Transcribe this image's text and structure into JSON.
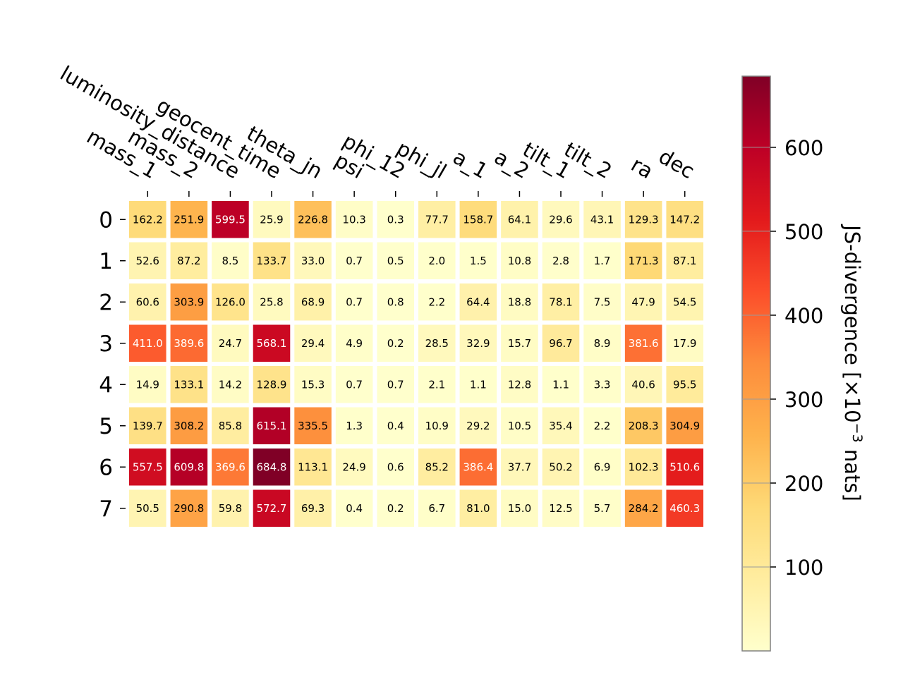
{
  "chart_data": {
    "type": "heatmap",
    "title": "",
    "xlabel": "",
    "ylabel": "",
    "x_categories": [
      "mass_1",
      "mass_2",
      "luminosity_distance",
      "geocent_time",
      "theta_jn",
      "psi",
      "phi_12",
      "phi_jl",
      "a_1",
      "a_2",
      "tilt_1",
      "tilt_2",
      "ra",
      "dec"
    ],
    "y_categories": [
      "0",
      "1",
      "2",
      "3",
      "4",
      "5",
      "6",
      "7"
    ],
    "values": [
      [
        162.2,
        251.9,
        599.5,
        25.9,
        226.8,
        10.3,
        0.3,
        77.7,
        158.7,
        64.1,
        29.6,
        43.1,
        129.3,
        147.2
      ],
      [
        52.6,
        87.2,
        8.5,
        133.7,
        33.0,
        0.7,
        0.5,
        2.0,
        1.5,
        10.8,
        2.8,
        1.7,
        171.3,
        87.1
      ],
      [
        60.6,
        303.9,
        126.0,
        25.8,
        68.9,
        0.7,
        0.8,
        2.2,
        64.4,
        18.8,
        78.1,
        7.5,
        47.9,
        54.5
      ],
      [
        411.0,
        389.6,
        24.7,
        568.1,
        29.4,
        4.9,
        0.2,
        28.5,
        32.9,
        15.7,
        96.7,
        8.9,
        381.6,
        17.9
      ],
      [
        14.9,
        133.1,
        14.2,
        128.9,
        15.3,
        0.7,
        0.7,
        2.1,
        1.1,
        12.8,
        1.1,
        3.3,
        40.6,
        95.5
      ],
      [
        139.7,
        308.2,
        85.8,
        615.1,
        335.5,
        1.3,
        0.4,
        10.9,
        29.2,
        10.5,
        35.4,
        2.2,
        208.3,
        304.9
      ],
      [
        557.5,
        609.8,
        369.6,
        684.8,
        113.1,
        24.9,
        0.6,
        85.2,
        386.4,
        37.7,
        50.2,
        6.9,
        102.3,
        510.6
      ],
      [
        50.5,
        290.8,
        59.8,
        572.7,
        69.3,
        0.4,
        0.2,
        6.7,
        81.0,
        15.0,
        12.5,
        5.7,
        284.2,
        460.3
      ]
    ],
    "colorbar": {
      "label": "JS-divergence [×10",
      "label_exponent": "−3",
      "label_suffix": " nats]",
      "ticks": [
        "100",
        "200",
        "300",
        "400",
        "500",
        "600"
      ],
      "tick_values": [
        100,
        200,
        300,
        400,
        500,
        600
      ],
      "range": [
        0,
        684.8
      ],
      "colormap": "YlOrRd"
    },
    "grid": false
  }
}
